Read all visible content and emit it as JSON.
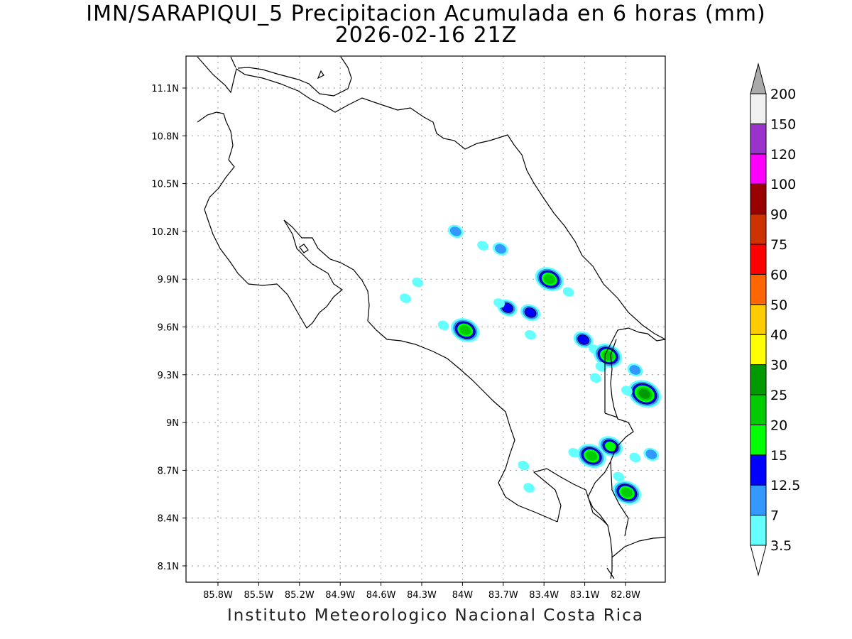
{
  "title": {
    "line1": "IMN/SARAPIQUI_5 Precipitacion Acumulada en 6 horas (mm)",
    "line2": "2026-02-16 21Z"
  },
  "footer": "Instituto Meteorologico Nacional Costa Rica",
  "map": {
    "lon_range": [
      -86.0,
      -82.5
    ],
    "lat_range": [
      8.0,
      11.3
    ],
    "lon_ticks": [
      {
        "value": -85.8,
        "label": "85.8W"
      },
      {
        "value": -85.5,
        "label": "85.5W"
      },
      {
        "value": -85.2,
        "label": "85.2W"
      },
      {
        "value": -84.9,
        "label": "84.9W"
      },
      {
        "value": -84.6,
        "label": "84.6W"
      },
      {
        "value": -84.3,
        "label": "84.3W"
      },
      {
        "value": -84.0,
        "label": "84W"
      },
      {
        "value": -83.7,
        "label": "83.7W"
      },
      {
        "value": -83.4,
        "label": "83.4W"
      },
      {
        "value": -83.1,
        "label": "83.1W"
      },
      {
        "value": -82.8,
        "label": "82.8W"
      }
    ],
    "lat_ticks": [
      {
        "value": 11.1,
        "label": "11.1N"
      },
      {
        "value": 10.8,
        "label": "10.8N"
      },
      {
        "value": 10.5,
        "label": "10.5N"
      },
      {
        "value": 10.2,
        "label": "10.2N"
      },
      {
        "value": 9.9,
        "label": "9.9N"
      },
      {
        "value": 9.6,
        "label": "9.6N"
      },
      {
        "value": 9.3,
        "label": "9.3N"
      },
      {
        "value": 9.0,
        "label": "9N"
      },
      {
        "value": 8.7,
        "label": "8.7N"
      },
      {
        "value": 8.4,
        "label": "8.4N"
      },
      {
        "value": 8.1,
        "label": "8.1N"
      }
    ],
    "grid": true
  },
  "colorbar": {
    "levels": [
      {
        "label": "3.5",
        "color": "#66ffff"
      },
      {
        "label": "7",
        "color": "#3399ff"
      },
      {
        "label": "12.5",
        "color": "#0000ff"
      },
      {
        "label": "15",
        "color": "#00ff00"
      },
      {
        "label": "20",
        "color": "#00cc00"
      },
      {
        "label": "25",
        "color": "#009900"
      },
      {
        "label": "30",
        "color": "#ffff00"
      },
      {
        "label": "40",
        "color": "#ffcc00"
      },
      {
        "label": "50",
        "color": "#ff6600"
      },
      {
        "label": "60",
        "color": "#ff0000"
      },
      {
        "label": "75",
        "color": "#cc3300"
      },
      {
        "label": "90",
        "color": "#990000"
      },
      {
        "label": "100",
        "color": "#ff00ff"
      },
      {
        "label": "120",
        "color": "#9933cc"
      },
      {
        "label": "150",
        "color": "#f0f0f0"
      },
      {
        "label": "200",
        "color": "#aaaaaa"
      }
    ],
    "top_arrow_color": "#aaaaaa",
    "bottom_arrow_color": "#ffffff"
  },
  "precip_cells": [
    {
      "lon": -84.05,
      "lat": 10.2,
      "level": 2
    },
    {
      "lon": -83.85,
      "lat": 10.11,
      "level": 1
    },
    {
      "lon": -83.72,
      "lat": 10.09,
      "level": 2
    },
    {
      "lon": -84.33,
      "lat": 9.88,
      "level": 1
    },
    {
      "lon": -84.42,
      "lat": 9.78,
      "level": 1
    },
    {
      "lon": -83.36,
      "lat": 9.9,
      "level": 5
    },
    {
      "lon": -83.22,
      "lat": 9.82,
      "level": 1
    },
    {
      "lon": -83.67,
      "lat": 9.72,
      "level": 3
    },
    {
      "lon": -83.5,
      "lat": 9.69,
      "level": 3
    },
    {
      "lon": -83.98,
      "lat": 9.58,
      "level": 5
    },
    {
      "lon": -84.14,
      "lat": 9.61,
      "level": 1
    },
    {
      "lon": -83.5,
      "lat": 9.55,
      "level": 1
    },
    {
      "lon": -83.11,
      "lat": 9.52,
      "level": 3
    },
    {
      "lon": -83.03,
      "lat": 9.46,
      "level": 1
    },
    {
      "lon": -82.93,
      "lat": 9.42,
      "level": 5
    },
    {
      "lon": -82.98,
      "lat": 9.35,
      "level": 1
    },
    {
      "lon": -83.02,
      "lat": 9.28,
      "level": 1
    },
    {
      "lon": -82.73,
      "lat": 9.33,
      "level": 2
    },
    {
      "lon": -82.66,
      "lat": 9.18,
      "level": 6
    },
    {
      "lon": -82.79,
      "lat": 9.2,
      "level": 1
    },
    {
      "lon": -83.05,
      "lat": 8.79,
      "level": 5
    },
    {
      "lon": -82.91,
      "lat": 8.85,
      "level": 4
    },
    {
      "lon": -82.73,
      "lat": 8.78,
      "level": 1
    },
    {
      "lon": -82.61,
      "lat": 8.8,
      "level": 2
    },
    {
      "lon": -83.18,
      "lat": 8.81,
      "level": 1
    },
    {
      "lon": -82.79,
      "lat": 8.56,
      "level": 5
    },
    {
      "lon": -82.85,
      "lat": 8.66,
      "level": 1
    },
    {
      "lon": -83.51,
      "lat": 8.59,
      "level": 1
    },
    {
      "lon": -83.55,
      "lat": 8.73,
      "level": 1
    },
    {
      "lon": -83.73,
      "lat": 9.75,
      "level": 1
    }
  ]
}
